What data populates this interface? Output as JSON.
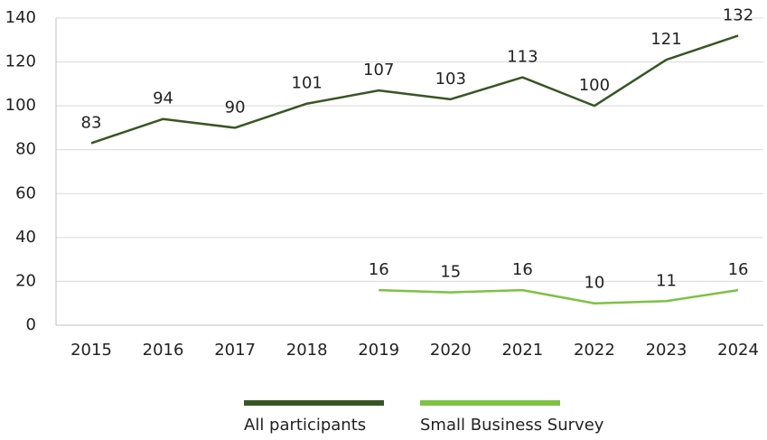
{
  "chart_data": {
    "type": "line",
    "categories": [
      "2015",
      "2016",
      "2017",
      "2018",
      "2019",
      "2020",
      "2021",
      "2022",
      "2023",
      "2024"
    ],
    "series": [
      {
        "name": "All participants",
        "color": "#375623",
        "values": [
          83,
          94,
          90,
          101,
          107,
          103,
          113,
          100,
          121,
          132
        ]
      },
      {
        "name": "Small Business Survey",
        "color": "#7dc242",
        "values": [
          null,
          null,
          null,
          null,
          16,
          15,
          16,
          10,
          11,
          16
        ]
      }
    ],
    "ylim": [
      0,
      140
    ],
    "yticks": [
      0,
      20,
      40,
      60,
      80,
      100,
      120,
      140
    ],
    "grid": true,
    "legend": "bottom"
  }
}
